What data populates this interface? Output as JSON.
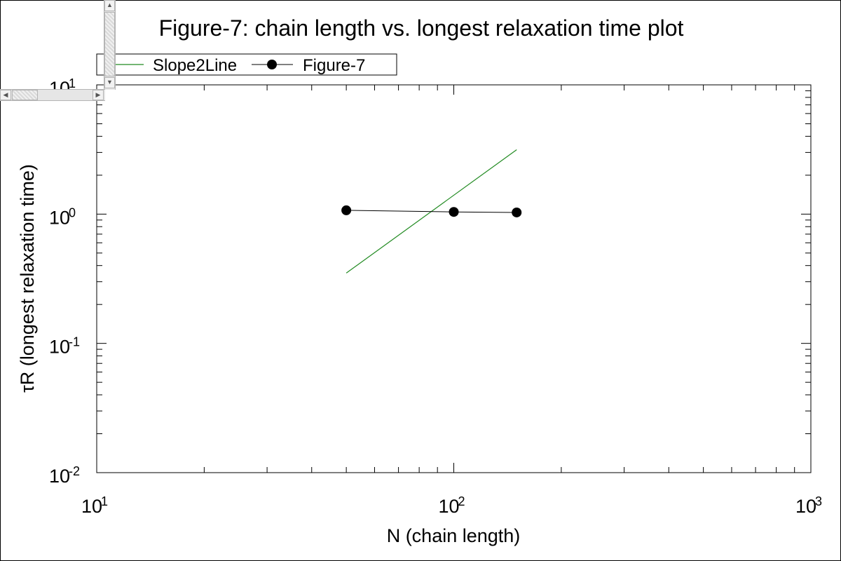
{
  "chart_data": {
    "type": "line",
    "title": "Figure-7: chain length vs. longest relaxation time plot",
    "xlabel": "N (chain length)",
    "ylabel": "τR (longest relaxation time)",
    "xscale": "log",
    "yscale": "log",
    "xlim": [
      10,
      1000
    ],
    "ylim": [
      0.01,
      10
    ],
    "grid": false,
    "legend_position": "top-left",
    "x_ticks": [
      {
        "base": "10",
        "exp": "1"
      },
      {
        "base": "10",
        "exp": "2"
      },
      {
        "base": "10",
        "exp": "3"
      }
    ],
    "y_ticks": [
      {
        "base": "10",
        "exp": "-2"
      },
      {
        "base": "10",
        "exp": "-1"
      },
      {
        "base": "10",
        "exp": "0"
      },
      {
        "base": "10",
        "exp": "1"
      }
    ],
    "series": [
      {
        "name": "Slope2Line",
        "color": "#228B22",
        "marker": "none",
        "x": [
          50,
          150
        ],
        "y": [
          0.35,
          3.15
        ]
      },
      {
        "name": "Figure-7",
        "color": "#000000",
        "marker": "circle",
        "x": [
          50,
          100,
          150
        ],
        "y": [
          1.07,
          1.04,
          1.03
        ]
      }
    ]
  }
}
